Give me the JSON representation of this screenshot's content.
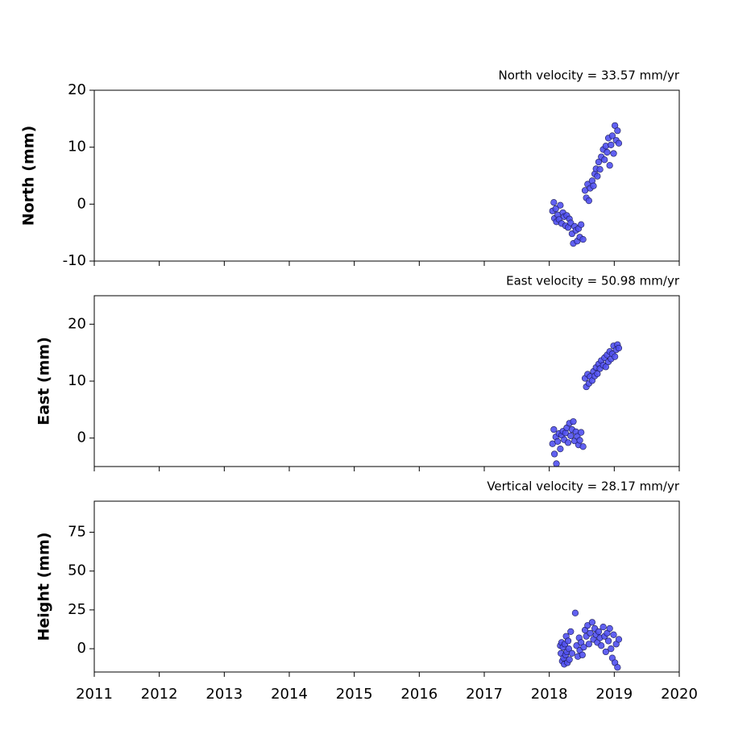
{
  "chart_data": [
    {
      "type": "scatter",
      "title": "North velocity = 33.57 mm/yr",
      "ylabel": "North (mm)",
      "xlim": [
        2011,
        2020
      ],
      "xticks": [
        2011,
        2012,
        2013,
        2014,
        2015,
        2016,
        2017,
        2018,
        2019,
        2020
      ],
      "xtick_labels": false,
      "ylim": [
        -10,
        20
      ],
      "yticks": [
        -10,
        0,
        10,
        20
      ],
      "color": "#5050f0",
      "edgecolor": "#1a1a50",
      "x": [
        2018.05,
        2018.07,
        2018.08,
        2018.1,
        2018.11,
        2018.13,
        2018.15,
        2018.17,
        2018.19,
        2018.21,
        2018.23,
        2018.25,
        2018.27,
        2018.29,
        2018.31,
        2018.33,
        2018.35,
        2018.37,
        2018.39,
        2018.41,
        2018.43,
        2018.45,
        2018.47,
        2018.49,
        2018.52,
        2018.55,
        2018.57,
        2018.59,
        2018.61,
        2018.63,
        2018.66,
        2018.68,
        2018.7,
        2018.72,
        2018.74,
        2018.76,
        2018.78,
        2018.8,
        2018.83,
        2018.85,
        2018.87,
        2018.89,
        2018.91,
        2018.93,
        2018.95,
        2018.97,
        2018.99,
        2019.01,
        2019.03,
        2019.05,
        2019.07
      ],
      "values": [
        -1.2,
        0.3,
        -2.5,
        -0.8,
        -3.1,
        -1.9,
        -2.7,
        -0.2,
        -3.4,
        -1.5,
        -2.2,
        -3.8,
        -2.0,
        -4.1,
        -2.6,
        -3.3,
        -5.2,
        -6.9,
        -3.9,
        -4.6,
        -6.5,
        -4.3,
        -5.8,
        -3.6,
        -6.2,
        2.4,
        1.1,
        3.5,
        0.6,
        2.8,
        4.1,
        3.2,
        5.3,
        6.2,
        4.9,
        7.4,
        6.1,
        8.3,
        9.6,
        7.8,
        10.2,
        9.1,
        11.6,
        6.8,
        10.4,
        12.0,
        8.9,
        13.8,
        11.2,
        12.9,
        10.7
      ]
    },
    {
      "type": "scatter",
      "title": "East velocity = 50.98 mm/yr",
      "ylabel": "East (mm)",
      "xlim": [
        2011,
        2020
      ],
      "xticks": [
        2011,
        2012,
        2013,
        2014,
        2015,
        2016,
        2017,
        2018,
        2019,
        2020
      ],
      "xtick_labels": false,
      "ylim": [
        -5,
        25
      ],
      "yticks": [
        0,
        10,
        20
      ],
      "color": "#5050f0",
      "edgecolor": "#1a1a50",
      "x": [
        2018.05,
        2018.07,
        2018.08,
        2018.1,
        2018.11,
        2018.13,
        2018.15,
        2018.17,
        2018.19,
        2018.21,
        2018.23,
        2018.25,
        2018.27,
        2018.29,
        2018.31,
        2018.33,
        2018.35,
        2018.37,
        2018.39,
        2018.41,
        2018.43,
        2018.45,
        2018.47,
        2018.49,
        2018.52,
        2018.55,
        2018.57,
        2018.59,
        2018.61,
        2018.63,
        2018.66,
        2018.68,
        2018.7,
        2018.72,
        2018.74,
        2018.76,
        2018.78,
        2018.8,
        2018.83,
        2018.85,
        2018.87,
        2018.89,
        2018.91,
        2018.93,
        2018.95,
        2018.97,
        2018.99,
        2019.01,
        2019.03,
        2019.05,
        2019.07
      ],
      "values": [
        -1.0,
        1.5,
        -2.8,
        0.2,
        -4.5,
        -0.6,
        0.8,
        -1.9,
        0.5,
        1.2,
        -0.3,
        0.9,
        1.8,
        -0.8,
        2.6,
        0.4,
        1.5,
        2.9,
        -0.5,
        1.1,
        0.3,
        -1.2,
        -0.4,
        1.0,
        -1.5,
        10.5,
        9.0,
        11.2,
        9.6,
        10.8,
        10.1,
        11.7,
        10.9,
        12.4,
        11.3,
        13.0,
        12.2,
        13.6,
        12.8,
        14.1,
        12.5,
        14.6,
        13.4,
        15.2,
        13.9,
        14.8,
        16.2,
        14.3,
        15.5,
        16.4,
        15.8
      ]
    },
    {
      "type": "scatter",
      "title": "Vertical velocity = 28.17 mm/yr",
      "ylabel": "Height (mm)",
      "xlim": [
        2011,
        2020
      ],
      "xticks": [
        2011,
        2012,
        2013,
        2014,
        2015,
        2016,
        2017,
        2018,
        2019,
        2020
      ],
      "xtick_labels": true,
      "ylim": [
        -15,
        95
      ],
      "yticks": [
        0,
        25,
        50,
        75
      ],
      "color": "#5050f0",
      "edgecolor": "#1a1a50",
      "x": [
        2018.17,
        2018.18,
        2018.19,
        2018.2,
        2018.21,
        2018.22,
        2018.23,
        2018.24,
        2018.25,
        2018.26,
        2018.27,
        2018.28,
        2018.29,
        2018.3,
        2018.31,
        2018.33,
        2018.35,
        2018.4,
        2018.42,
        2018.44,
        2018.46,
        2018.47,
        2018.49,
        2018.51,
        2018.53,
        2018.55,
        2018.57,
        2018.59,
        2018.61,
        2018.63,
        2018.66,
        2018.68,
        2018.7,
        2018.72,
        2018.74,
        2018.76,
        2018.78,
        2018.8,
        2018.83,
        2018.85,
        2018.87,
        2018.89,
        2018.91,
        2018.93,
        2018.95,
        2018.97,
        2018.99,
        2019.01,
        2019.03,
        2019.05,
        2019.07
      ],
      "values": [
        2,
        -3,
        4,
        -8,
        1,
        -6,
        -10,
        3,
        -4,
        8,
        -2,
        -9,
        5,
        0,
        -7,
        11,
        -3,
        23,
        2,
        -5,
        7,
        -1,
        4,
        -4,
        1,
        12,
        8,
        15,
        3,
        10,
        17,
        6,
        13,
        9,
        4,
        11,
        7,
        2,
        14,
        8,
        -2,
        10,
        5,
        13,
        0,
        -6,
        9,
        -9,
        3,
        -12,
        6
      ]
    }
  ]
}
